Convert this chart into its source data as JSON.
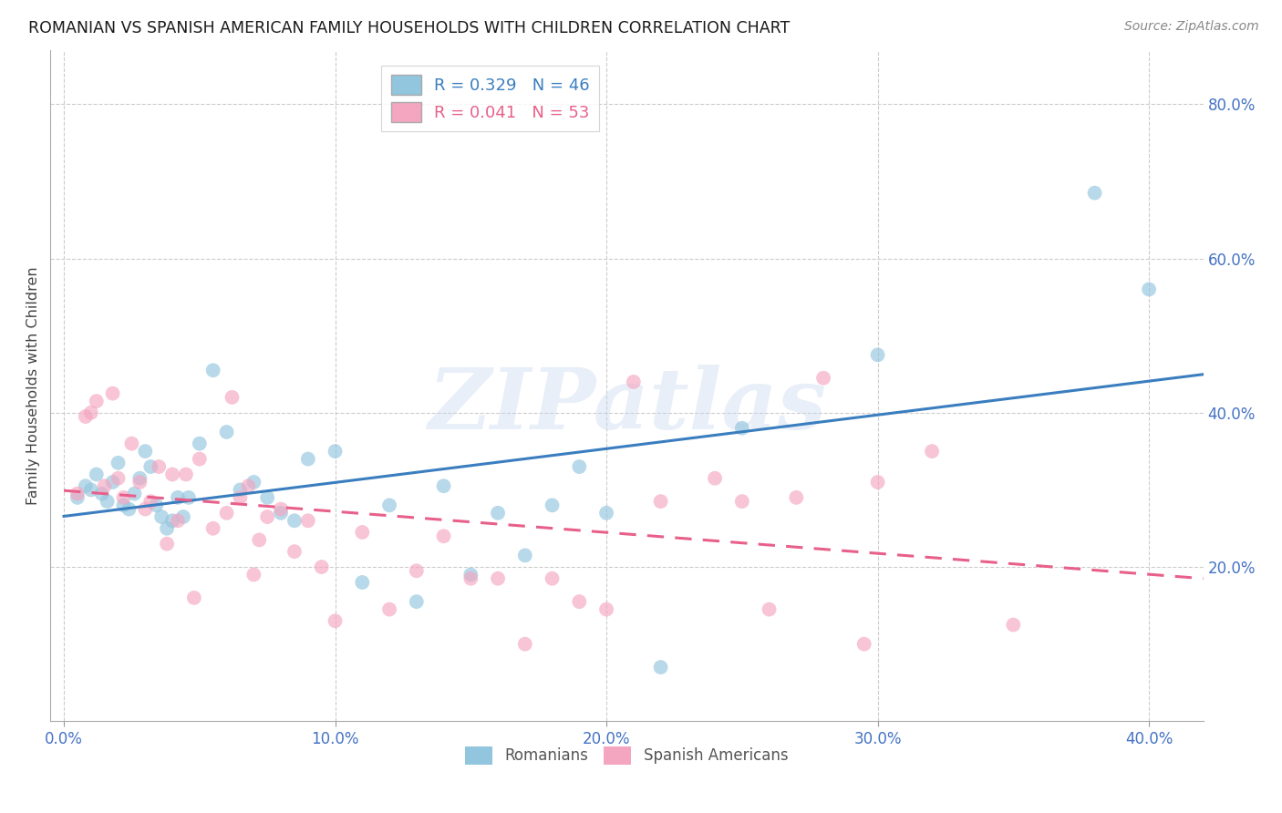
{
  "title": "ROMANIAN VS SPANISH AMERICAN FAMILY HOUSEHOLDS WITH CHILDREN CORRELATION CHART",
  "source": "Source: ZipAtlas.com",
  "xlabel_vals": [
    0.0,
    0.1,
    0.2,
    0.3,
    0.4
  ],
  "ylabel_vals": [
    0.2,
    0.4,
    0.6,
    0.8
  ],
  "xlim": [
    -0.005,
    0.42
  ],
  "ylim": [
    0.0,
    0.87
  ],
  "watermark": "ZIPatlas",
  "R_romanian": 0.329,
  "N_romanian": 46,
  "R_spanish": 0.041,
  "N_spanish": 53,
  "color_romanian": "#92c5de",
  "color_spanish": "#f4a6c0",
  "color_line_romanian": "#3a7ebf",
  "color_line_spanish": "#e8608a",
  "grid_color": "#cccccc",
  "tick_color": "#4472c4",
  "romanian_x": [
    0.005,
    0.008,
    0.01,
    0.012,
    0.014,
    0.016,
    0.018,
    0.02,
    0.022,
    0.024,
    0.026,
    0.028,
    0.03,
    0.032,
    0.034,
    0.036,
    0.038,
    0.04,
    0.042,
    0.044,
    0.046,
    0.05,
    0.055,
    0.06,
    0.065,
    0.07,
    0.075,
    0.08,
    0.085,
    0.09,
    0.1,
    0.11,
    0.12,
    0.13,
    0.14,
    0.15,
    0.16,
    0.17,
    0.18,
    0.19,
    0.2,
    0.22,
    0.25,
    0.3,
    0.38,
    0.4
  ],
  "romanian_y": [
    0.29,
    0.305,
    0.3,
    0.32,
    0.295,
    0.285,
    0.31,
    0.335,
    0.28,
    0.275,
    0.295,
    0.315,
    0.35,
    0.33,
    0.28,
    0.265,
    0.25,
    0.26,
    0.29,
    0.265,
    0.29,
    0.36,
    0.455,
    0.375,
    0.3,
    0.31,
    0.29,
    0.27,
    0.26,
    0.34,
    0.35,
    0.18,
    0.28,
    0.155,
    0.305,
    0.19,
    0.27,
    0.215,
    0.28,
    0.33,
    0.27,
    0.07,
    0.38,
    0.475,
    0.685,
    0.56
  ],
  "spanish_x": [
    0.005,
    0.008,
    0.01,
    0.012,
    0.015,
    0.018,
    0.02,
    0.022,
    0.025,
    0.028,
    0.03,
    0.032,
    0.035,
    0.038,
    0.04,
    0.042,
    0.045,
    0.048,
    0.05,
    0.055,
    0.06,
    0.062,
    0.065,
    0.068,
    0.07,
    0.072,
    0.075,
    0.08,
    0.085,
    0.09,
    0.095,
    0.1,
    0.11,
    0.12,
    0.13,
    0.14,
    0.15,
    0.16,
    0.17,
    0.18,
    0.19,
    0.2,
    0.21,
    0.22,
    0.24,
    0.25,
    0.26,
    0.27,
    0.28,
    0.295,
    0.3,
    0.32,
    0.35
  ],
  "spanish_y": [
    0.295,
    0.395,
    0.4,
    0.415,
    0.305,
    0.425,
    0.315,
    0.29,
    0.36,
    0.31,
    0.275,
    0.285,
    0.33,
    0.23,
    0.32,
    0.26,
    0.32,
    0.16,
    0.34,
    0.25,
    0.27,
    0.42,
    0.29,
    0.305,
    0.19,
    0.235,
    0.265,
    0.275,
    0.22,
    0.26,
    0.2,
    0.13,
    0.245,
    0.145,
    0.195,
    0.24,
    0.185,
    0.185,
    0.1,
    0.185,
    0.155,
    0.145,
    0.44,
    0.285,
    0.315,
    0.285,
    0.145,
    0.29,
    0.445,
    0.1,
    0.31,
    0.35,
    0.125
  ]
}
